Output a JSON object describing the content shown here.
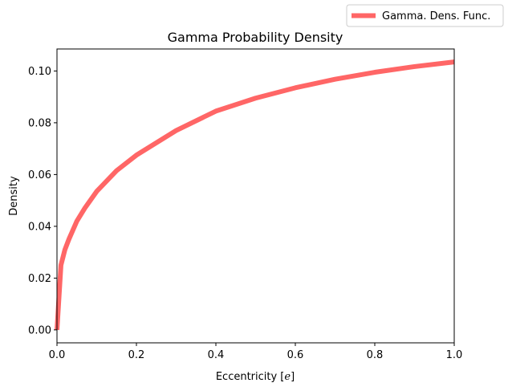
{
  "chart_data": {
    "type": "line",
    "title": "Gamma Probability Density",
    "xlabel_prefix": "Eccentricity [",
    "xlabel_var": "e",
    "xlabel_suffix": "]",
    "ylabel": "Density",
    "xlim": [
      0.0,
      1.0
    ],
    "ylim": [
      -0.005,
      0.1085
    ],
    "x_ticks": [
      0.0,
      0.2,
      0.4,
      0.6,
      0.8,
      1.0
    ],
    "x_tick_labels": [
      "0.0",
      "0.2",
      "0.4",
      "0.6",
      "0.8",
      "1.0"
    ],
    "y_ticks": [
      0.0,
      0.02,
      0.04,
      0.06,
      0.08,
      0.1
    ],
    "y_tick_labels": [
      "0.00",
      "0.02",
      "0.04",
      "0.06",
      "0.08",
      "0.10"
    ],
    "grid": false,
    "legend_position": "upper-right-outside",
    "series": [
      {
        "name": "Gamma. Dens. Func.",
        "color": "#ff6666",
        "x": [
          0.0,
          0.01,
          0.02,
          0.03,
          0.05,
          0.07,
          0.1,
          0.15,
          0.2,
          0.3,
          0.4,
          0.5,
          0.6,
          0.7,
          0.8,
          0.9,
          1.0
        ],
        "y": [
          0.0,
          0.025,
          0.031,
          0.035,
          0.042,
          0.047,
          0.0535,
          0.0615,
          0.0675,
          0.077,
          0.0845,
          0.0895,
          0.0935,
          0.0968,
          0.0995,
          0.1017,
          0.1035
        ]
      }
    ]
  }
}
